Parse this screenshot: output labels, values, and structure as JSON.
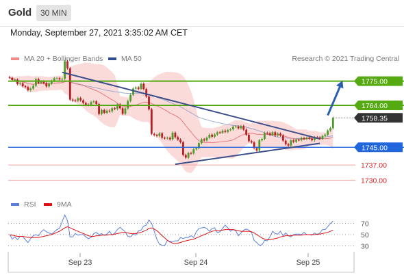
{
  "header": {
    "instrument": "Gold",
    "timeframe": "30 MIN"
  },
  "timestamp": "Monday, September 27, 2021 3:35:02 AM CET",
  "legend": {
    "ma20": "MA 20 + Bollinger Bands",
    "ma50": "MA 50",
    "rsi": "RSI",
    "ma9": "9MA"
  },
  "copyright": "Research © 2021 Trading Central",
  "colors": {
    "support_blue": "#2266dd",
    "resistance_green": "#55aa11",
    "target_red": "#dd2222",
    "candle_green": "#4c9b29",
    "candle_red": "#b51f1f",
    "bollinger_fill": "#fbdada",
    "ma20": "#e77a7a",
    "ma50": "#9ba9cd",
    "trend": "#3a4f8a",
    "arrow": "#2a5fb0",
    "rsi": "#5b7fd9",
    "ma9": "#dd1111"
  },
  "chart_data": [
    {
      "type": "candlestick",
      "title": "Gold",
      "timeframe": "30 MIN",
      "x_ticks": [
        "Sep 23",
        "Sep 24",
        "Sep 25"
      ],
      "ylim": [
        1724,
        1782
      ],
      "levels": [
        {
          "value": 1775.0,
          "label": "1775.00",
          "kind": "resistance"
        },
        {
          "value": 1764.0,
          "label": "1764.00",
          "kind": "resistance"
        },
        {
          "value": 1758.35,
          "label": "1758.35",
          "kind": "last"
        },
        {
          "value": 1745.0,
          "label": "1745.00",
          "kind": "support"
        },
        {
          "value": 1737.0,
          "label": "1737.00",
          "kind": "target"
        },
        {
          "value": 1730.0,
          "label": "1730.00",
          "kind": "target"
        }
      ],
      "close": [
        1776.5,
        1775.5,
        1775.6,
        1773.7,
        1774.0,
        1772.7,
        1772.3,
        1770.9,
        1771.6,
        1772.9,
        1775.9,
        1774.2,
        1774.8,
        1774.1,
        1772.6,
        1773.9,
        1775.1,
        1776.3,
        1776.3,
        1775.8,
        1776.0,
        1784.0,
        1780.8,
        1766.6,
        1766.2,
        1766.1,
        1767.3,
        1766.3,
        1765.1,
        1764.3,
        1764.2,
        1765.5,
        1765.8,
        1764.6,
        1760.1,
        1761.9,
        1760.6,
        1761.6,
        1761.3,
        1762.7,
        1762.4,
        1764.5,
        1762.7,
        1760.2,
        1762.6,
        1766.0,
        1768.8,
        1771.6,
        1772.1,
        1771.5,
        1773.8,
        1771.4,
        1768.0,
        1762.2,
        1751.1,
        1750.5,
        1750.1,
        1751.3,
        1749.3,
        1749.1,
        1749.3,
        1748.6,
        1751.6,
        1749.6,
        1748.5,
        1747.3,
        1741.5,
        1740.3,
        1742.4,
        1742.2,
        1744.1,
        1744.6,
        1746.9,
        1748.6,
        1748.1,
        1749.3,
        1750.7,
        1749.8,
        1750.8,
        1751.8,
        1751.6,
        1752.5,
        1752.0,
        1752.8,
        1753.1,
        1754.3,
        1754.4,
        1753.6,
        1754.6,
        1753.0,
        1750.7,
        1747.8,
        1747.2,
        1744.6,
        1743.5,
        1748.2,
        1748.8,
        1751.5,
        1751.4,
        1750.6,
        1751.8,
        1750.4,
        1751.2,
        1750.4,
        1748.0,
        1746.4,
        1745.8,
        1748.1,
        1747.5,
        1748.4,
        1748.3,
        1749.2,
        1748.8,
        1749.4,
        1748.9,
        1748.2,
        1749.5,
        1749.4,
        1748.8,
        1750.1,
        1750.7,
        1752.6,
        1753.7,
        1758.35
      ],
      "trendlines": [
        {
          "name": "descending",
          "from": {
            "index": 20,
            "value": 1779.0
          },
          "to": {
            "index": 118,
            "value": 1748.8
          }
        },
        {
          "name": "ascending",
          "from": {
            "index": 63,
            "value": 1737.3
          },
          "to": {
            "index": 118,
            "value": 1746.8
          }
        }
      ],
      "projection": {
        "from": {
          "index": 121,
          "value": 1759.5
        },
        "to": {
          "index": 126,
          "value": 1773.5
        }
      }
    },
    {
      "type": "line",
      "name": "RSI panel",
      "y_ticks": [
        70,
        50,
        30
      ],
      "ylim": [
        10,
        90
      ],
      "series": [
        {
          "name": "RSI",
          "values": [
            51,
            42,
            46,
            41,
            47,
            47,
            41,
            36,
            43,
            48,
            50,
            48,
            55,
            59,
            55,
            53,
            51,
            55,
            59,
            61,
            73,
            85,
            75,
            46,
            46,
            52,
            49,
            50,
            50,
            46,
            43,
            45,
            52,
            54,
            50,
            52,
            49,
            51,
            56,
            49,
            53,
            59,
            63,
            59,
            55,
            47,
            46,
            51,
            49,
            57,
            58,
            65,
            67,
            76,
            70,
            56,
            42,
            33,
            31,
            31,
            40,
            38,
            38,
            39,
            39,
            45,
            43,
            45,
            45,
            48,
            45,
            55,
            61,
            62,
            63,
            61,
            56,
            61,
            62,
            54,
            55,
            61,
            67,
            62,
            56,
            59,
            57,
            48,
            53,
            58,
            60,
            58,
            54,
            40,
            36,
            31,
            32,
            40,
            39,
            46,
            56,
            52,
            51,
            56,
            48,
            53,
            48,
            46,
            50,
            51,
            51,
            50,
            54,
            50,
            50,
            49,
            53,
            50,
            53,
            59,
            59,
            64,
            70,
            74
          ]
        },
        {
          "name": "9MA",
          "values": [
            49,
            49,
            48,
            47,
            47,
            47,
            46,
            45,
            45,
            45,
            45,
            45,
            46,
            47,
            48,
            49,
            50,
            52,
            54,
            56,
            59,
            62,
            64,
            62,
            60,
            58,
            56,
            54,
            52,
            50,
            48,
            47,
            47,
            48,
            48,
            49,
            49,
            49,
            50,
            50,
            51,
            52,
            53,
            54,
            54,
            53,
            52,
            52,
            52,
            53,
            54,
            56,
            58,
            61,
            62,
            60,
            57,
            53,
            48,
            44,
            40,
            37,
            35,
            34,
            35,
            36,
            38,
            39,
            40,
            41,
            42,
            44,
            46,
            48,
            50,
            52,
            54,
            56,
            57,
            57,
            57,
            58,
            59,
            59,
            59,
            59,
            58,
            57,
            56,
            56,
            56,
            56,
            55,
            53,
            50,
            47,
            44,
            42,
            41,
            41,
            42,
            43,
            44,
            46,
            47,
            48,
            48,
            48,
            49,
            49,
            49,
            49,
            50,
            50,
            50,
            50,
            50,
            51,
            51,
            52,
            53,
            54,
            56,
            58
          ]
        }
      ]
    }
  ]
}
